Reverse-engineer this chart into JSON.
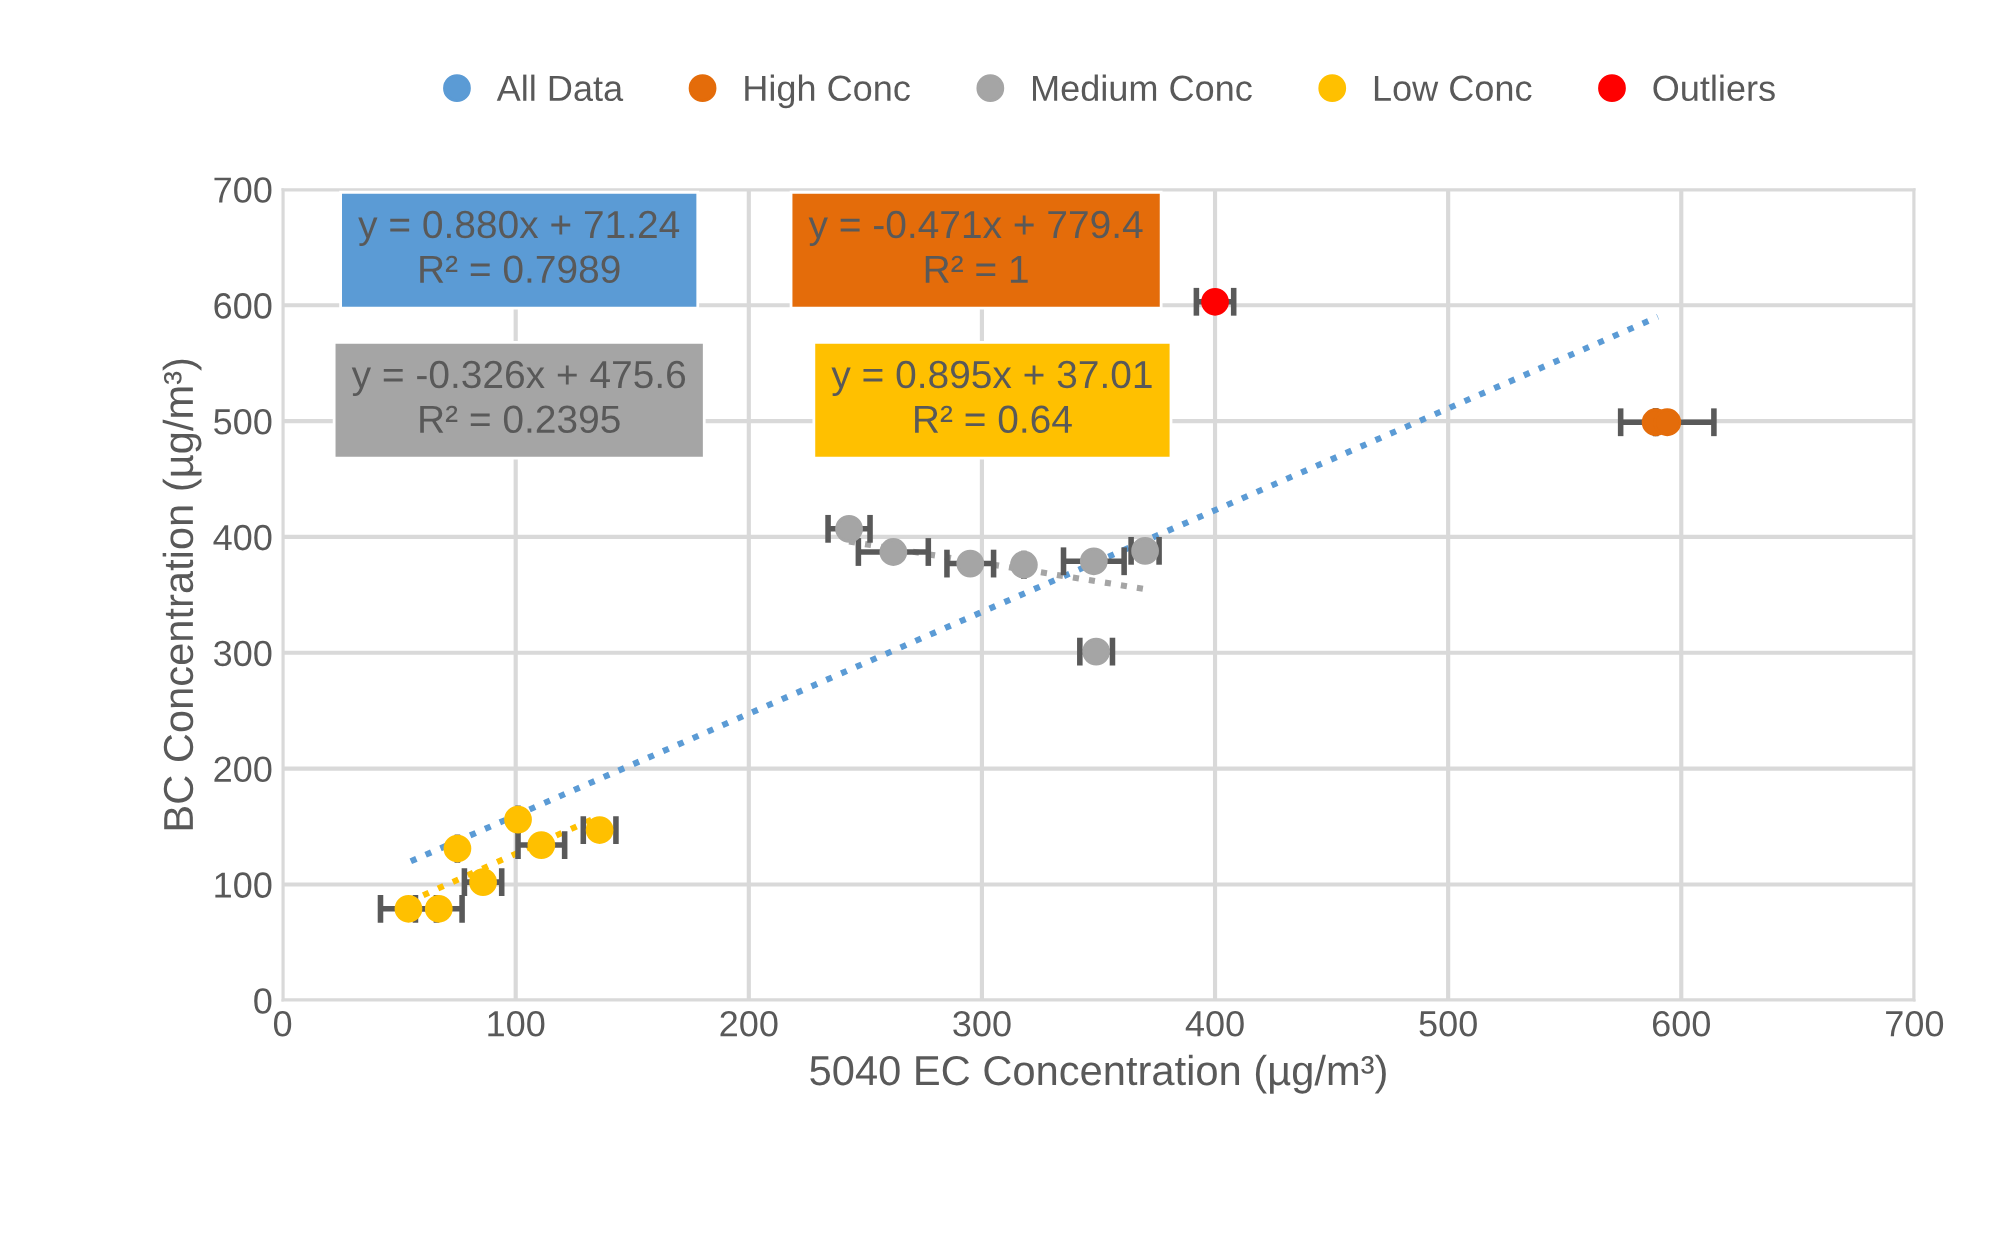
{
  "chart_data": {
    "type": "scatter",
    "xlabel": "5040 EC Concentration (µg/m³)",
    "ylabel": "BC Concentration (µg/m³)",
    "xlim": [
      0,
      700
    ],
    "xticks": [
      0,
      100,
      200,
      300,
      400,
      500,
      600,
      700
    ],
    "ylim": [
      0,
      700
    ],
    "yticks": [
      0,
      100,
      200,
      300,
      400,
      500,
      600,
      700
    ],
    "grid": true,
    "legend": "top",
    "marker": "circle",
    "series": [
      {
        "name": "All Data",
        "type": "line",
        "marker": "none",
        "line_style": "dotted",
        "color": "#5b9bd5",
        "x": [
          55,
          590
        ],
        "values": [
          120,
          590
        ]
      },
      {
        "name": "High Conc",
        "color": "#e46c0a",
        "x": [
          589,
          594
        ],
        "values": [
          499,
          499
        ],
        "xerrors": [
          null,
          20
        ]
      },
      {
        "name": "Medium Conc",
        "color": "#a5a5a5",
        "x": [
          243,
          262,
          295,
          318,
          348,
          370,
          349
        ],
        "values": [
          407,
          387,
          377,
          376,
          379,
          388,
          301
        ],
        "xerrors": [
          9,
          15,
          10,
          null,
          13,
          6,
          7
        ]
      },
      {
        "name": "Low Conc",
        "color": "#ffc000",
        "x": [
          54,
          67,
          86,
          75,
          101,
          108,
          111,
          136
        ],
        "values": [
          79,
          79,
          102,
          131,
          156,
          null,
          134,
          147
        ],
        "xerrors": [
          12,
          10,
          8,
          null,
          null,
          null,
          10,
          7
        ]
      },
      {
        "name": "Outliers",
        "color": "#ff0000",
        "x": [
          400
        ],
        "values": [
          603
        ],
        "xerrors": [
          8
        ]
      },
      {
        "type": "line",
        "marker": "none",
        "line_style": "dotted",
        "color": "#a5a5a5",
        "x": [
          243,
          370
        ],
        "values": [
          396,
          355
        ]
      },
      {
        "type": "line",
        "marker": "none",
        "line_style": "dotted",
        "color": "#ffc000",
        "x": [
          54,
          136
        ],
        "values": [
          85,
          159
        ]
      }
    ],
    "annotations": [
      "y = 0.880x + 71.24\nR² = 0.7989",
      "y = -0.471x + 779.4\nR² = 1",
      "y = -0.326x + 475.6\nR² = 0.2395",
      "y = 0.895x + 37.01\nR² = 0.64"
    ]
  }
}
